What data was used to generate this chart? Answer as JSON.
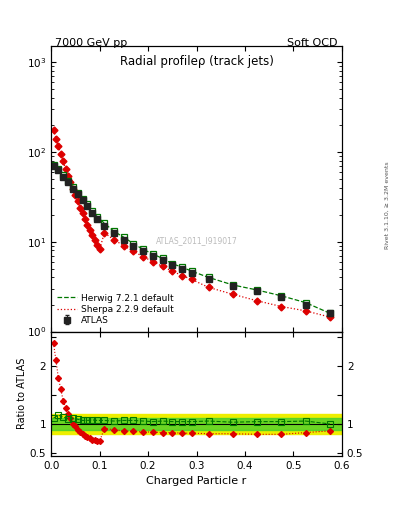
{
  "title": "Radial profileρ (track jets)",
  "header_left": "7000 GeV pp",
  "header_right": "Soft QCD",
  "right_label": "Rivet 3.1.10, ≥ 3.2M events",
  "watermark": "ATLAS_2011_I919017",
  "xlabel": "Charged Particle r",
  "ylabel_ratio": "Ratio to ATLAS",
  "xlim": [
    0.0,
    0.6
  ],
  "ylim_main": [
    1.0,
    1500
  ],
  "ylim_ratio": [
    0.45,
    2.6
  ],
  "atlas_x": [
    0.005,
    0.015,
    0.025,
    0.035,
    0.045,
    0.055,
    0.065,
    0.075,
    0.085,
    0.095,
    0.11,
    0.13,
    0.15,
    0.17,
    0.19,
    0.21,
    0.23,
    0.25,
    0.27,
    0.29,
    0.325,
    0.375,
    0.425,
    0.475,
    0.525,
    0.575
  ],
  "atlas_y": [
    70,
    62,
    53,
    46,
    39,
    34,
    29,
    25,
    21,
    18,
    15,
    12.5,
    10.5,
    9.0,
    7.8,
    7.0,
    6.2,
    5.5,
    5.0,
    4.5,
    3.8,
    3.2,
    2.8,
    2.4,
    2.0,
    1.6
  ],
  "atlas_yerr": [
    4,
    3,
    2.5,
    2,
    1.8,
    1.5,
    1.3,
    1.1,
    1.0,
    0.9,
    0.7,
    0.6,
    0.5,
    0.45,
    0.4,
    0.35,
    0.3,
    0.28,
    0.25,
    0.22,
    0.19,
    0.16,
    0.14,
    0.12,
    0.1,
    0.08
  ],
  "herwig_x": [
    0.005,
    0.015,
    0.025,
    0.035,
    0.045,
    0.055,
    0.065,
    0.075,
    0.085,
    0.095,
    0.11,
    0.13,
    0.15,
    0.17,
    0.19,
    0.21,
    0.23,
    0.25,
    0.27,
    0.29,
    0.325,
    0.375,
    0.425,
    0.475,
    0.525,
    0.575
  ],
  "herwig_y": [
    72,
    64,
    55,
    47,
    41,
    35,
    30,
    26,
    22,
    19,
    16,
    13,
    11.2,
    9.5,
    8.2,
    7.3,
    6.5,
    5.7,
    5.2,
    4.7,
    4.0,
    3.3,
    2.9,
    2.5,
    2.1,
    1.6
  ],
  "herwig_ratio": [
    1.1,
    1.15,
    1.12,
    1.09,
    1.1,
    1.08,
    1.06,
    1.06,
    1.07,
    1.06,
    1.06,
    1.05,
    1.06,
    1.06,
    1.05,
    1.04,
    1.05,
    1.04,
    1.04,
    1.04,
    1.05,
    1.03,
    1.04,
    1.04,
    1.05,
    1.0
  ],
  "sherpa_x": [
    0.005,
    0.01,
    0.015,
    0.02,
    0.025,
    0.03,
    0.035,
    0.04,
    0.045,
    0.05,
    0.055,
    0.06,
    0.065,
    0.07,
    0.075,
    0.08,
    0.085,
    0.09,
    0.095,
    0.1,
    0.11,
    0.13,
    0.15,
    0.17,
    0.19,
    0.21,
    0.23,
    0.25,
    0.27,
    0.29,
    0.325,
    0.375,
    0.425,
    0.475,
    0.525,
    0.575
  ],
  "sherpa_y": [
    175,
    140,
    115,
    95,
    78,
    65,
    54,
    46,
    39,
    33,
    28,
    24,
    21,
    18,
    15.5,
    13.5,
    12,
    10.5,
    9.2,
    8.2,
    12.5,
    10.5,
    9.0,
    7.8,
    6.8,
    6.0,
    5.3,
    4.7,
    4.2,
    3.8,
    3.1,
    2.6,
    2.2,
    1.9,
    1.7,
    1.45
  ],
  "sherpa_ratio": [
    2.4,
    2.1,
    1.8,
    1.6,
    1.4,
    1.28,
    1.17,
    1.1,
    1.0,
    0.96,
    0.9,
    0.86,
    0.82,
    0.79,
    0.77,
    0.75,
    0.73,
    0.72,
    0.71,
    0.7,
    0.92,
    0.9,
    0.88,
    0.87,
    0.86,
    0.86,
    0.85,
    0.85,
    0.84,
    0.84,
    0.83,
    0.83,
    0.82,
    0.82,
    0.85,
    0.88
  ],
  "band_yellow_lo": 0.82,
  "band_yellow_hi": 1.18,
  "band_green_lo": 0.9,
  "band_green_hi": 1.1,
  "atlas_color": "#222222",
  "herwig_color": "#007700",
  "sherpa_color": "#dd0000",
  "band_yellow_color": "#eeee00",
  "band_green_color": "#33cc33"
}
